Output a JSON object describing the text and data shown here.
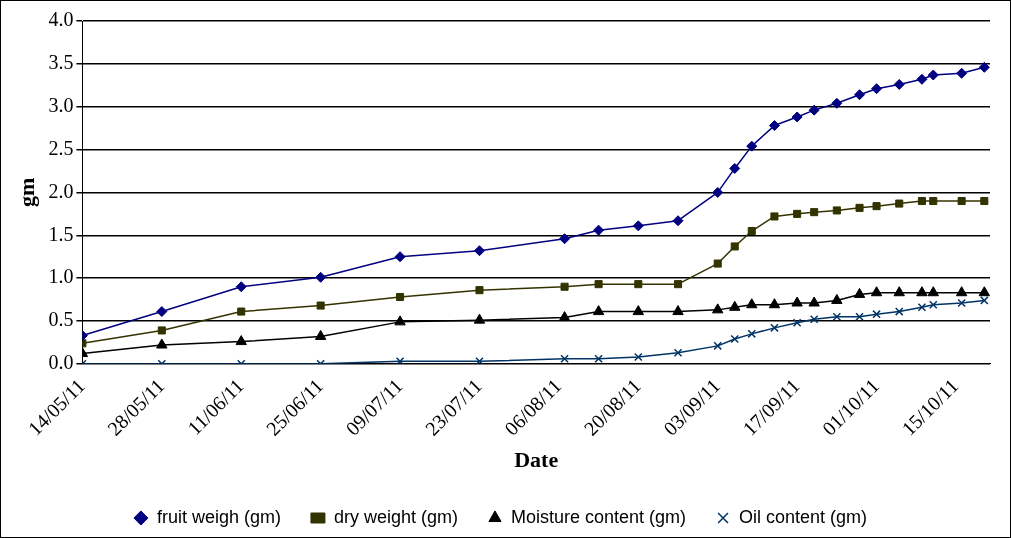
{
  "chart_data": {
    "type": "line",
    "xlabel": "Date",
    "ylabel": "gm",
    "x": [
      "--05-14",
      "--05-28",
      "--06-11",
      "--06-25",
      "--07-09",
      "--07-23",
      "--08-07",
      "--08-13",
      "--08-20",
      "--08-27",
      "--09-03",
      "--09-06",
      "--09-09",
      "--09-13",
      "--09-17",
      "--09-20",
      "--09-24",
      "--09-28",
      "--10-01",
      "--10-05",
      "--10-09",
      "--10-11",
      "--10-16",
      "--10-20"
    ],
    "series": [
      {
        "name": "fruit weigh (gm)",
        "color": "#000080",
        "marker": "diamond",
        "values": [
          0.33,
          0.61,
          0.9,
          1.01,
          1.25,
          1.32,
          1.46,
          1.56,
          1.61,
          1.67,
          2.0,
          2.28,
          2.54,
          2.78,
          2.88,
          2.96,
          3.04,
          3.14,
          3.21,
          3.26,
          3.32,
          3.37,
          3.39,
          3.46
        ]
      },
      {
        "name": "dry weight (gm)",
        "color": "#333300",
        "marker": "square",
        "values": [
          0.24,
          0.39,
          0.61,
          0.68,
          0.78,
          0.86,
          0.9,
          0.93,
          0.93,
          0.93,
          1.17,
          1.37,
          1.55,
          1.72,
          1.75,
          1.77,
          1.79,
          1.82,
          1.84,
          1.87,
          1.9,
          1.9,
          1.9,
          1.9
        ]
      },
      {
        "name": "Moisture content (gm)",
        "color": "#000000",
        "marker": "triangle",
        "values": [
          0.12,
          0.22,
          0.26,
          0.32,
          0.49,
          0.51,
          0.54,
          0.61,
          0.61,
          0.61,
          0.63,
          0.66,
          0.69,
          0.69,
          0.71,
          0.71,
          0.74,
          0.81,
          0.83,
          0.83,
          0.83,
          0.83,
          0.83,
          0.83
        ]
      },
      {
        "name": "Oil content (gm)",
        "color": "#003366",
        "marker": "cross",
        "values": [
          0,
          0,
          0,
          0,
          0.03,
          0.03,
          0.06,
          0.06,
          0.08,
          0.13,
          0.21,
          0.29,
          0.35,
          0.42,
          0.48,
          0.52,
          0.55,
          0.55,
          0.58,
          0.61,
          0.66,
          0.69,
          0.71,
          0.74
        ]
      }
    ],
    "xlim": [
      "--05-14",
      "--10-21"
    ],
    "xticks": [
      {
        "value": "--05-14",
        "label": "14/05/11"
      },
      {
        "value": "--05-28",
        "label": "28/05/11"
      },
      {
        "value": "--06-11",
        "label": "11/06/11"
      },
      {
        "value": "--06-25",
        "label": "25/06/11"
      },
      {
        "value": "--07-09",
        "label": "09/07/11"
      },
      {
        "value": "--07-23",
        "label": "23/07/11"
      },
      {
        "value": "--08-06",
        "label": "06/08/11"
      },
      {
        "value": "--08-20",
        "label": "20/08/11"
      },
      {
        "value": "--09-03",
        "label": "03/09/11"
      },
      {
        "value": "--09-17",
        "label": "17/09/11"
      },
      {
        "value": "--10-01",
        "label": "01/10/11"
      },
      {
        "value": "--10-15",
        "label": "15/10/11"
      }
    ],
    "ylim": [
      0,
      4
    ],
    "yticks": [
      {
        "value": 0,
        "label": "0.0"
      },
      0.5,
      {
        "value": 1,
        "label": "1.0"
      },
      1.5,
      {
        "value": 2,
        "label": "2.0"
      },
      2.5,
      {
        "value": 3,
        "label": "3.0"
      },
      3.5,
      {
        "value": 4,
        "label": "4.0"
      }
    ],
    "grid": "y",
    "legend": "bottom"
  }
}
